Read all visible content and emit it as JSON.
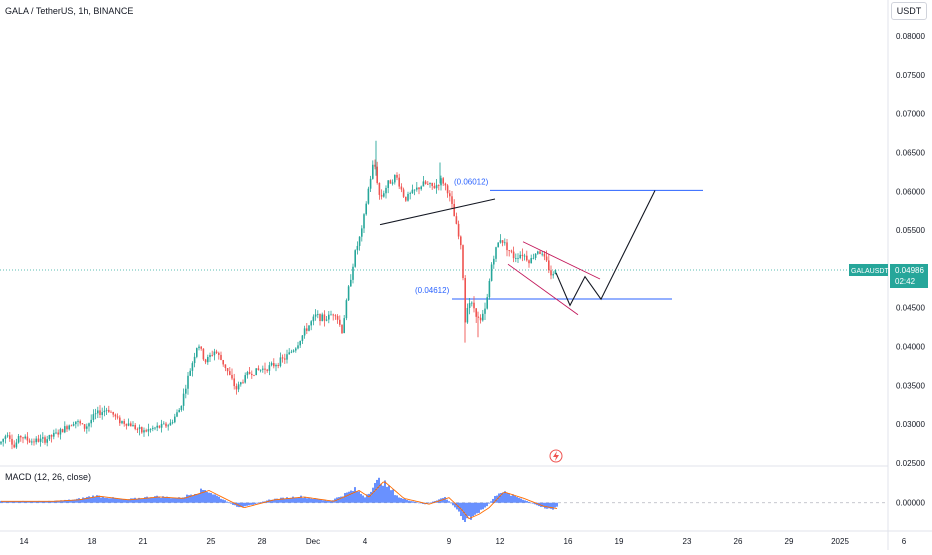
{
  "header": {
    "title": "GALA / TetherUS, 1h, BINANCE",
    "currency": "USDT"
  },
  "macd": {
    "label": "MACD (12, 26, close)",
    "zero_label": "0.00000"
  },
  "price_tag": {
    "symbol": "GALAUSDT",
    "price": "0.04986",
    "countdown": "02:42"
  },
  "annotations": {
    "upper_level": "(0.06012)",
    "lower_level": "(0.04612)"
  },
  "colors": {
    "up": "#26a69a",
    "down": "#ef5350",
    "level_line": "#2962ff",
    "price_line": "#26a69a",
    "macd_hist": "#2962ff",
    "macd_signal": "#ff6d00",
    "trend_line": "#131722",
    "channel_line": "#c2185b"
  },
  "chart_data": {
    "type": "candlestick",
    "symbol": "GALA / TetherUS",
    "interval": "1h",
    "exchange": "BINANCE",
    "y_ticks": [
      "0.08000",
      "0.07500",
      "0.07000",
      "0.06500",
      "0.06000",
      "0.05500",
      "0.05000",
      "0.04500",
      "0.04000",
      "0.03500",
      "0.03000",
      "0.02500"
    ],
    "ylim": [
      0.025,
      0.08
    ],
    "x_ticks": [
      "14",
      "18",
      "21",
      "25",
      "28",
      "Dec",
      "4",
      "9",
      "12",
      "16",
      "19",
      "23",
      "26",
      "29",
      "2025",
      "6"
    ],
    "price_path": [
      [
        0,
        0.0275
      ],
      [
        8,
        0.029
      ],
      [
        14,
        0.027
      ],
      [
        20,
        0.0285
      ],
      [
        30,
        0.0278
      ],
      [
        45,
        0.028
      ],
      [
        60,
        0.029
      ],
      [
        75,
        0.0305
      ],
      [
        85,
        0.0295
      ],
      [
        95,
        0.0312
      ],
      [
        108,
        0.032
      ],
      [
        118,
        0.0305
      ],
      [
        130,
        0.03
      ],
      [
        142,
        0.029
      ],
      [
        155,
        0.0295
      ],
      [
        170,
        0.03
      ],
      [
        180,
        0.032
      ],
      [
        188,
        0.036
      ],
      [
        198,
        0.0405
      ],
      [
        205,
        0.038
      ],
      [
        215,
        0.0395
      ],
      [
        225,
        0.0375
      ],
      [
        236,
        0.0345
      ],
      [
        248,
        0.0365
      ],
      [
        260,
        0.037
      ],
      [
        272,
        0.0375
      ],
      [
        285,
        0.0385
      ],
      [
        296,
        0.04
      ],
      [
        305,
        0.042
      ],
      [
        316,
        0.044
      ],
      [
        325,
        0.0435
      ],
      [
        335,
        0.0445
      ],
      [
        342,
        0.042
      ],
      [
        348,
        0.047
      ],
      [
        355,
        0.052
      ],
      [
        362,
        0.055
      ],
      [
        368,
        0.06
      ],
      [
        374,
        0.064
      ],
      [
        380,
        0.059
      ],
      [
        388,
        0.061
      ],
      [
        396,
        0.062
      ],
      [
        405,
        0.059
      ],
      [
        414,
        0.06
      ],
      [
        424,
        0.061
      ],
      [
        434,
        0.0605
      ],
      [
        442,
        0.0615
      ],
      [
        448,
        0.06
      ],
      [
        453,
        0.0575
      ],
      [
        458,
        0.0545
      ],
      [
        462,
        0.052
      ],
      [
        465,
        0.043
      ],
      [
        468,
        0.046
      ],
      [
        474,
        0.045
      ],
      [
        480,
        0.043
      ],
      [
        486,
        0.045
      ],
      [
        492,
        0.051
      ],
      [
        500,
        0.054
      ],
      [
        506,
        0.053
      ],
      [
        514,
        0.0515
      ],
      [
        522,
        0.052
      ],
      [
        530,
        0.051
      ],
      [
        538,
        0.0525
      ],
      [
        546,
        0.051
      ],
      [
        552,
        0.049
      ],
      [
        558,
        0.0495
      ]
    ],
    "last_price": 0.04986,
    "horizontal_levels": [
      0.06012,
      0.04612
    ],
    "projection_path": [
      [
        556,
        0.0495
      ],
      [
        570,
        0.0453
      ],
      [
        585,
        0.049
      ],
      [
        601,
        0.0461
      ],
      [
        655,
        0.0601
      ]
    ],
    "trend_line": [
      [
        380,
        0.0557
      ],
      [
        495,
        0.059
      ]
    ],
    "channel_upper": [
      [
        523,
        0.0535
      ],
      [
        600,
        0.0487
      ]
    ],
    "channel_lower": [
      [
        508,
        0.0506
      ],
      [
        578,
        0.0441
      ]
    ],
    "macd": {
      "ylim": [
        -0.0031,
        0.0041
      ],
      "histogram_shape": [
        [
          0,
          0.0002
        ],
        [
          14,
          0.0002
        ],
        [
          50,
          0.0002
        ],
        [
          75,
          0.0004
        ],
        [
          95,
          0.0009
        ],
        [
          125,
          0.0004
        ],
        [
          155,
          0.0008
        ],
        [
          180,
          0.0006
        ],
        [
          205,
          0.0017
        ],
        [
          225,
          0.0003
        ],
        [
          240,
          -0.0007
        ],
        [
          270,
          0.0004
        ],
        [
          300,
          0.0008
        ],
        [
          330,
          0.0002
        ],
        [
          355,
          0.0017
        ],
        [
          365,
          0.0008
        ],
        [
          380,
          0.003
        ],
        [
          400,
          0.0006
        ],
        [
          425,
          -0.0002
        ],
        [
          445,
          0.0007
        ],
        [
          458,
          -0.001
        ],
        [
          465,
          -0.0022
        ],
        [
          475,
          -0.0016
        ],
        [
          485,
          -0.0007
        ],
        [
          500,
          0.0015
        ],
        [
          520,
          0.0006
        ],
        [
          540,
          -0.0005
        ],
        [
          553,
          -0.0008
        ],
        [
          558,
          -0.0004
        ]
      ]
    }
  }
}
